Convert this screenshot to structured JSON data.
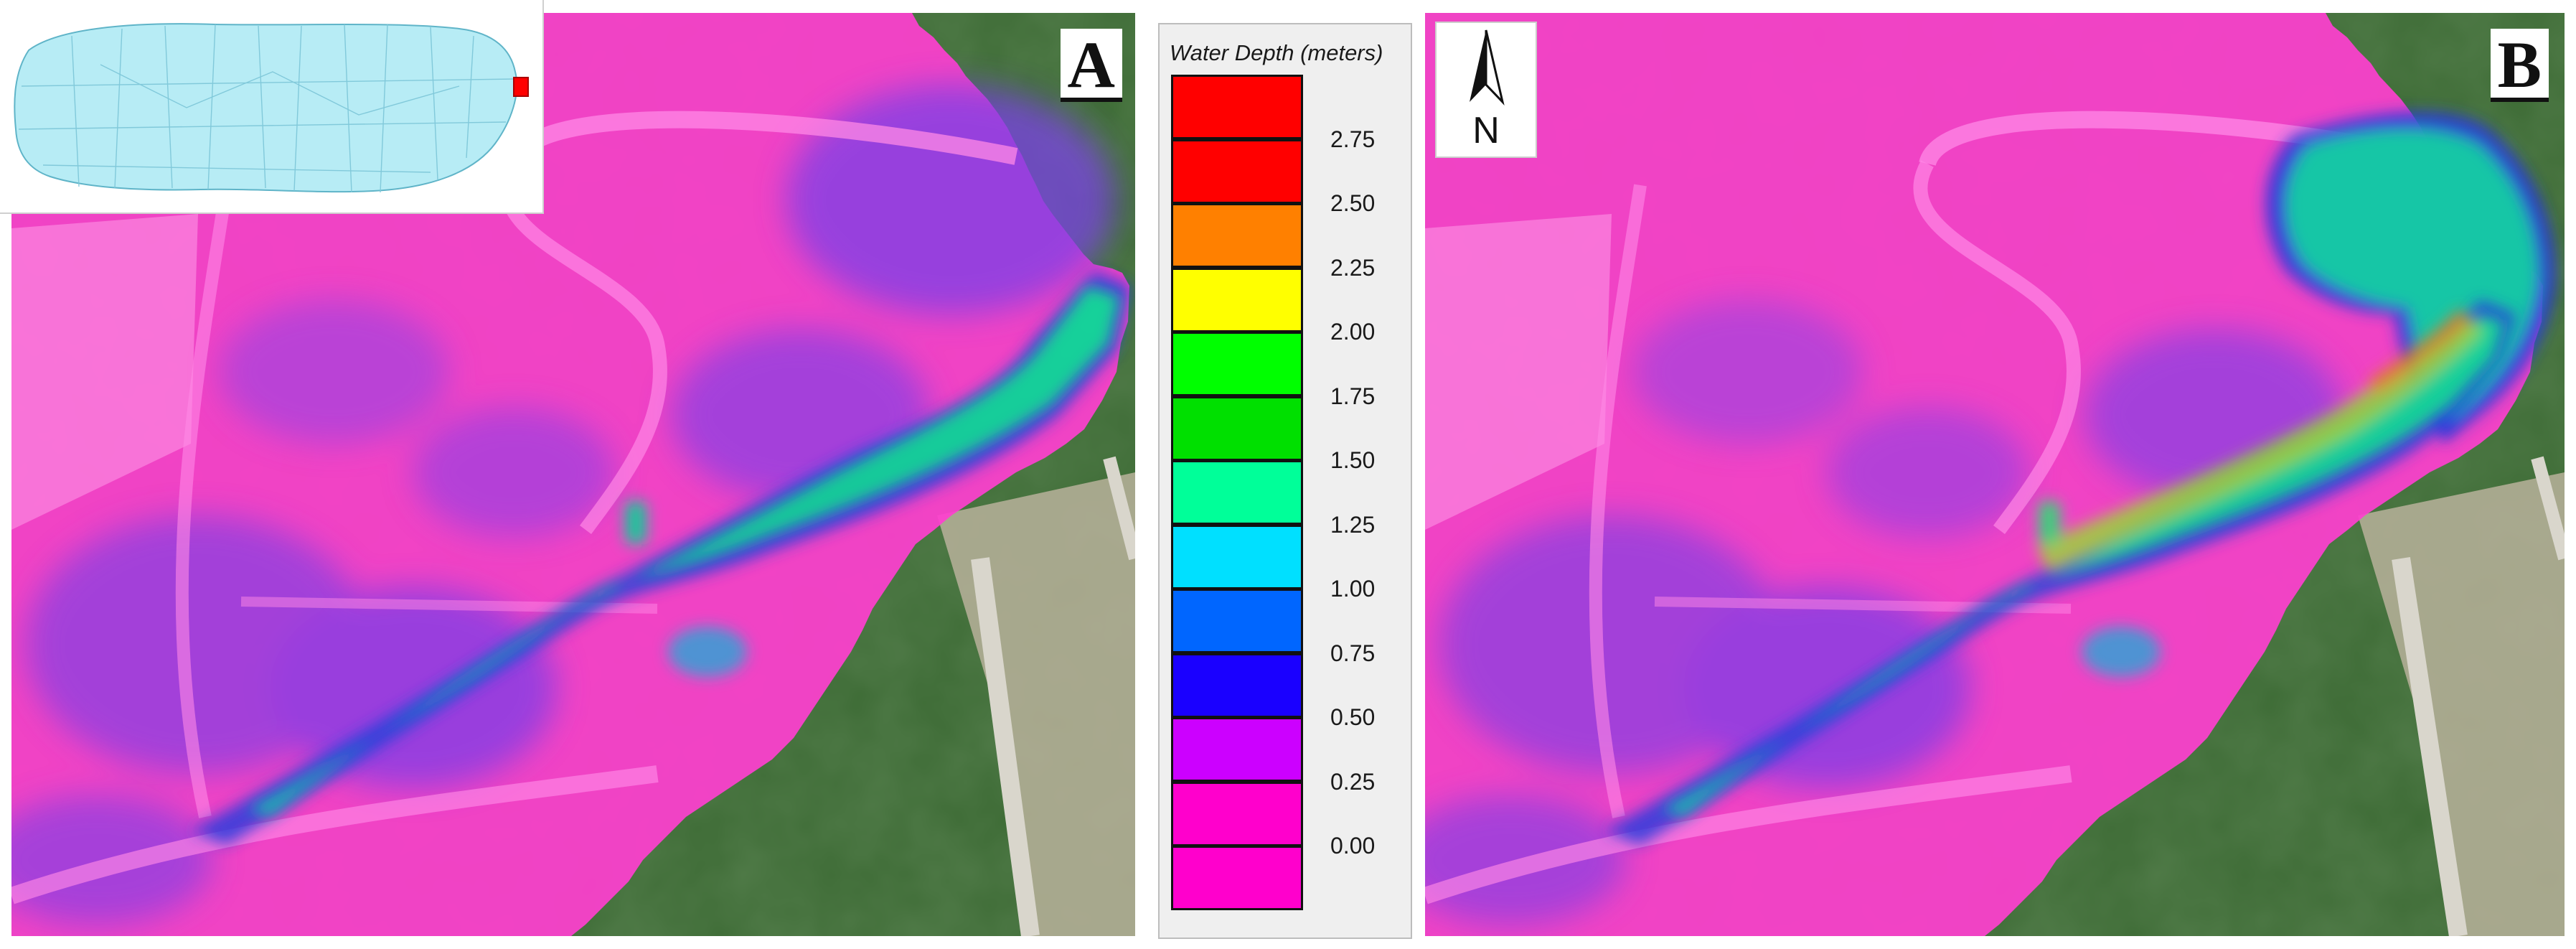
{
  "panels": [
    {
      "id": "A",
      "label": "A"
    },
    {
      "id": "B",
      "label": "B"
    }
  ],
  "north_arrow": {
    "label": "N",
    "icon": "north-arrow-icon"
  },
  "inset_map": {
    "icon": "puerto-rico-locator-map",
    "land_color": "#b7ecf5",
    "highlight_color": "#ff0000"
  },
  "legend": {
    "title": "Water Depth (meters)",
    "bins": [
      {
        "color": "#ff0000"
      },
      {
        "color": "#ff0000",
        "label": "2.75"
      },
      {
        "color": "#ff8000",
        "label": "2.50"
      },
      {
        "color": "#ffff00",
        "label": "2.25"
      },
      {
        "color": "#00ff00",
        "label": "2.00"
      },
      {
        "color": "#00e000",
        "label": "1.75"
      },
      {
        "color": "#00ff99",
        "label": "1.50"
      },
      {
        "color": "#00e0ff",
        "label": "1.25"
      },
      {
        "color": "#0066ff",
        "label": "1.00"
      },
      {
        "color": "#1a00ff",
        "label": "0.75"
      },
      {
        "color": "#cc00ff",
        "label": "0.50"
      },
      {
        "color": "#ff00cc",
        "label": "0.25"
      },
      {
        "color": "#ff00cc",
        "label": "0.00"
      }
    ]
  },
  "colors": {
    "vegetation": "#3d6b35",
    "overlay_magenta": "#ff3fd0",
    "overlay_purple": "#9b3fe0"
  }
}
